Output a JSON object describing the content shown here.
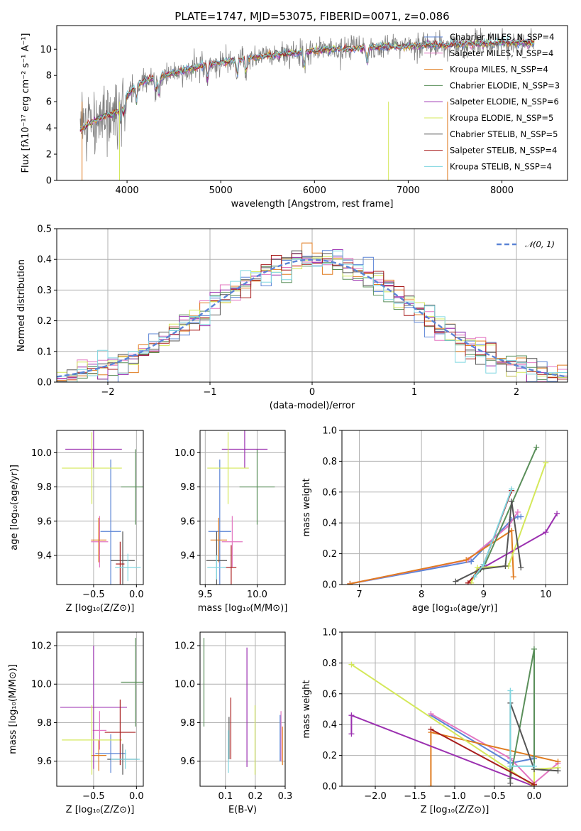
{
  "chart_data": [
    {
      "type": "line",
      "title": "PLATE=1747, MJD=53075, FIBERID=0071, z=0.086",
      "xlabel": "wavelength [Angstrom, rest frame]",
      "ylabel": "Flux [fλ10⁻¹⁷ erg cm⁻² s⁻¹ A⁻¹]",
      "xlim": [
        3250,
        8700
      ],
      "ylim": [
        0,
        11.8
      ],
      "xticks": [
        "4000",
        "5000",
        "6000",
        "7000",
        "8000"
      ],
      "yticks": [
        "0",
        "2",
        "4",
        "6",
        "8",
        "10"
      ],
      "legend": "upper-right",
      "grid": false,
      "data_color": "#808080",
      "continuum": {
        "x": [
          3500,
          3600,
          3700,
          3800,
          3900,
          4000,
          4100,
          4200,
          4400,
          4600,
          4800,
          5000,
          5200,
          5400,
          5600,
          5800,
          6000,
          6200,
          6400,
          6600,
          6800,
          7000,
          7200,
          7400,
          7600,
          7800,
          8000,
          8300
        ],
        "y": [
          3.9,
          4.3,
          4.7,
          5.0,
          5.2,
          6.5,
          7.2,
          7.6,
          8.0,
          8.4,
          8.7,
          9.0,
          9.2,
          9.4,
          9.6,
          9.7,
          9.9,
          10.0,
          10.0,
          10.1,
          10.2,
          10.2,
          10.3,
          10.3,
          10.4,
          10.4,
          10.5,
          10.5
        ]
      },
      "series": [
        {
          "name": "Chabrier MILES, N_SSP=4",
          "color": "#5b84d6"
        },
        {
          "name": "Salpeter MILES, N_SSP=4",
          "color": "#e377c2"
        },
        {
          "name": "Kroupa MILES, N_SSP=4",
          "color": "#e07b1f"
        },
        {
          "name": "Chabrier ELODIE, N_SSP=3",
          "color": "#5a8f5a"
        },
        {
          "name": "Salpeter ELODIE, N_SSP=6",
          "color": "#9b30b0"
        },
        {
          "name": "Kroupa ELODIE, N_SSP=5",
          "color": "#d4e85a"
        },
        {
          "name": "Chabrier STELIB, N_SSP=5",
          "color": "#555555"
        },
        {
          "name": "Salpeter STELIB, N_SSP=4",
          "color": "#a81c1c"
        },
        {
          "name": "Kroupa STELIB, N_SSP=4",
          "color": "#7fd6e0"
        }
      ]
    },
    {
      "type": "histogram",
      "xlabel": "(data-model)/error",
      "ylabel": "Normed distribution",
      "xlim": [
        -2.5,
        2.5
      ],
      "ylim": [
        0,
        0.5
      ],
      "xticks": [
        "−2",
        "−1",
        "0",
        "1",
        "2"
      ],
      "yticks": [
        "0.0",
        "0.1",
        "0.2",
        "0.3",
        "0.4",
        "0.5"
      ],
      "grid": true,
      "legend": "upper-right",
      "reference_curve": {
        "name": "𝒩(0, 1)",
        "mean": 0,
        "sigma": 1,
        "color": "#5b84d6"
      },
      "bin_width": 0.1,
      "bin_start": -2.5
    },
    {
      "type": "scatter",
      "xlabel": "Z [log₁₀(Z/Z⊙)]",
      "ylabel": "age  [log₁₀(age/yr)]",
      "xlim": [
        -0.93,
        0.08
      ],
      "ylim": [
        9.23,
        10.13
      ],
      "xticks": [
        "−0.5",
        "0.0"
      ],
      "yticks": [
        "9.4",
        "9.6",
        "9.8",
        "10.0"
      ],
      "points": [
        {
          "x": -0.3,
          "y": 9.54,
          "xerr": 0.12,
          "yerr": 0.42,
          "color": "#5b84d6"
        },
        {
          "x": -0.43,
          "y": 9.48,
          "xerr": 0.1,
          "yerr": 0.15,
          "color": "#e377c2"
        },
        {
          "x": -0.44,
          "y": 9.49,
          "xerr": 0.09,
          "yerr": 0.13,
          "color": "#e07b1f"
        },
        {
          "x": -0.01,
          "y": 9.8,
          "xerr": 0.17,
          "yerr": 0.22,
          "color": "#5a8f5a"
        },
        {
          "x": -0.5,
          "y": 10.02,
          "xerr": 0.33,
          "yerr": 0.11,
          "color": "#9b30b0"
        },
        {
          "x": -0.52,
          "y": 9.91,
          "xerr": 0.35,
          "yerr": 0.21,
          "color": "#d4e85a"
        },
        {
          "x": -0.16,
          "y": 9.37,
          "xerr": 0.14,
          "yerr": 0.17,
          "color": "#555555"
        },
        {
          "x": -0.19,
          "y": 9.35,
          "xerr": 0.05,
          "yerr": 0.13,
          "color": "#a81c1c"
        },
        {
          "x": -0.1,
          "y": 9.33,
          "xerr": 0.15,
          "yerr": 0.08,
          "color": "#7fd6e0"
        }
      ]
    },
    {
      "type": "scatter",
      "xlabel": "mass [log₁₀(M/M⊙)]",
      "ylabel": "",
      "xlim": [
        9.45,
        10.27
      ],
      "ylim": [
        9.23,
        10.13
      ],
      "xticks": [
        "9.5",
        "10.0"
      ],
      "yticks": [
        "9.4",
        "9.6",
        "9.8",
        "10.0"
      ],
      "points": [
        {
          "x": 9.64,
          "y": 9.54,
          "xerr": 0.11,
          "yerr": 0.42,
          "color": "#5b84d6"
        },
        {
          "x": 9.76,
          "y": 9.48,
          "xerr": 0.1,
          "yerr": 0.15,
          "color": "#e377c2"
        },
        {
          "x": 9.63,
          "y": 9.49,
          "xerr": 0.08,
          "yerr": 0.13,
          "color": "#e07b1f"
        },
        {
          "x": 10.0,
          "y": 9.8,
          "xerr": 0.17,
          "yerr": 0.22,
          "color": "#5a8f5a"
        },
        {
          "x": 9.88,
          "y": 10.02,
          "xerr": 0.22,
          "yerr": 0.11,
          "color": "#9b30b0"
        },
        {
          "x": 9.72,
          "y": 9.91,
          "xerr": 0.2,
          "yerr": 0.21,
          "color": "#d4e85a"
        },
        {
          "x": 9.61,
          "y": 9.37,
          "xerr": 0.1,
          "yerr": 0.17,
          "color": "#555555"
        },
        {
          "x": 9.75,
          "y": 9.33,
          "xerr": 0.05,
          "yerr": 0.13,
          "color": "#a81c1c"
        },
        {
          "x": 9.61,
          "y": 9.33,
          "xerr": 0.09,
          "yerr": 0.07,
          "color": "#7fd6e0"
        }
      ]
    },
    {
      "type": "line",
      "xlabel": "age  [log₁₀(age/yr)]",
      "ylabel": "mass weight",
      "xlim": [
        6.72,
        10.35
      ],
      "ylim": [
        0,
        1.0
      ],
      "xticks": [
        "7",
        "8",
        "9",
        "10"
      ],
      "yticks": [
        "0.0",
        "0.2",
        "0.4",
        "0.6",
        "0.8",
        "1.0"
      ],
      "grid": true,
      "series": [
        {
          "color": "#5b84d6",
          "x": [
            6.85,
            8.8,
            9.45,
            9.55,
            9.6
          ],
          "y": [
            0.005,
            0.15,
            0.42,
            0.44,
            0.44
          ]
        },
        {
          "color": "#e377c2",
          "x": [
            6.85,
            8.75,
            9.4,
            9.55
          ],
          "y": [
            0.005,
            0.16,
            0.38,
            0.47
          ]
        },
        {
          "color": "#e07b1f",
          "x": [
            6.85,
            8.72,
            9.45,
            9.48
          ],
          "y": [
            0.005,
            0.16,
            0.35,
            0.05
          ]
        },
        {
          "color": "#5a8f5a",
          "x": [
            8.85,
            9.0,
            9.85
          ],
          "y": [
            0.05,
            0.11,
            0.89
          ]
        },
        {
          "color": "#9b30b0",
          "x": [
            8.95,
            10.0,
            10.18
          ],
          "y": [
            0.1,
            0.34,
            0.46
          ]
        },
        {
          "color": "#d4e85a",
          "x": [
            8.8,
            8.9,
            9.4,
            10.0
          ],
          "y": [
            0.01,
            0.11,
            0.12,
            0.79
          ]
        },
        {
          "color": "#555555",
          "x": [
            8.55,
            8.95,
            9.35,
            9.45,
            9.6
          ],
          "y": [
            0.02,
            0.1,
            0.12,
            0.54,
            0.11
          ]
        },
        {
          "color": "#a81c1c",
          "x": [
            8.75,
            9.0,
            9.45
          ],
          "y": [
            0.01,
            0.13,
            0.61
          ]
        },
        {
          "color": "#7fd6e0",
          "x": [
            8.85,
            9.0,
            9.45
          ],
          "y": [
            0.05,
            0.13,
            0.62
          ]
        }
      ]
    },
    {
      "type": "scatter",
      "xlabel": "Z [log₁₀(Z/Z⊙)]",
      "ylabel": "mass [log₁₀(M/M⊙)]",
      "xlim": [
        -0.93,
        0.08
      ],
      "ylim": [
        9.47,
        10.27
      ],
      "xticks": [
        "−0.5",
        "0.0"
      ],
      "yticks": [
        "9.6",
        "9.8",
        "10.0",
        "10.2"
      ],
      "points": [
        {
          "x": -0.3,
          "y": 9.64,
          "xerr": 0.18,
          "yerr": 0.1,
          "color": "#5b84d6"
        },
        {
          "x": -0.43,
          "y": 9.76,
          "xerr": 0.08,
          "yerr": 0.1,
          "color": "#e377c2"
        },
        {
          "x": -0.44,
          "y": 9.63,
          "xerr": 0.09,
          "yerr": 0.08,
          "color": "#e07b1f"
        },
        {
          "x": -0.01,
          "y": 10.01,
          "xerr": 0.17,
          "yerr": 0.23,
          "color": "#5a8f5a"
        },
        {
          "x": -0.5,
          "y": 9.88,
          "xerr": 0.39,
          "yerr": 0.32,
          "color": "#9b30b0"
        },
        {
          "x": -0.52,
          "y": 9.71,
          "xerr": 0.35,
          "yerr": 0.18,
          "color": "#d4e85a"
        },
        {
          "x": -0.16,
          "y": 9.61,
          "xerr": 0.18,
          "yerr": 0.08,
          "color": "#555555"
        },
        {
          "x": -0.19,
          "y": 9.75,
          "xerr": 0.18,
          "yerr": 0.17,
          "color": "#a81c1c"
        },
        {
          "x": -0.13,
          "y": 9.61,
          "xerr": 0.17,
          "yerr": 0.05,
          "color": "#7fd6e0"
        }
      ]
    },
    {
      "type": "scatter",
      "xlabel": "E(B-V)",
      "ylabel": "",
      "xlim": [
        0.015,
        0.3
      ],
      "ylim": [
        9.47,
        10.27
      ],
      "xticks": [
        "0.1",
        "0.2",
        "0.3"
      ],
      "yticks": [
        "9.6",
        "9.8",
        "10.0",
        "10.2"
      ],
      "points": [
        {
          "x": 0.283,
          "y": 9.72,
          "yerr": 0.12,
          "color": "#5b84d6"
        },
        {
          "x": 0.286,
          "y": 9.73,
          "yerr": 0.13,
          "color": "#e377c2"
        },
        {
          "x": 0.291,
          "y": 9.68,
          "yerr": 0.1,
          "color": "#e07b1f"
        },
        {
          "x": 0.028,
          "y": 10.01,
          "yerr": 0.23,
          "color": "#5a8f5a"
        },
        {
          "x": 0.172,
          "y": 9.88,
          "yerr": 0.31,
          "color": "#9b30b0"
        },
        {
          "x": 0.199,
          "y": 9.71,
          "yerr": 0.18,
          "color": "#d4e85a"
        },
        {
          "x": 0.112,
          "y": 9.72,
          "yerr": 0.11,
          "color": "#555555"
        },
        {
          "x": 0.118,
          "y": 9.77,
          "yerr": 0.16,
          "color": "#a81c1c"
        },
        {
          "x": 0.11,
          "y": 9.65,
          "yerr": 0.11,
          "color": "#7fd6e0"
        }
      ]
    },
    {
      "type": "line",
      "xlabel": "Z [log₁₀(Z/Z⊙)]",
      "ylabel": "mass weight",
      "xlim": [
        -2.42,
        0.42
      ],
      "ylim": [
        0,
        1.0
      ],
      "xticks": [
        "−2.0",
        "−1.5",
        "−1.0",
        "−0.5",
        "0.0"
      ],
      "yticks": [
        "0.0",
        "0.2",
        "0.4",
        "0.6",
        "0.8",
        "1.0"
      ],
      "grid": true,
      "series": [
        {
          "color": "#5b84d6",
          "x": [
            -1.3,
            -0.3,
            0.0,
            0.0
          ],
          "y": [
            0.46,
            0.15,
            0.18,
            0.19
          ]
        },
        {
          "color": "#e377c2",
          "x": [
            -1.3,
            -0.3,
            0.0,
            0.3
          ],
          "y": [
            0.47,
            0.18,
            0.02,
            0.15
          ]
        },
        {
          "color": "#e07b1f",
          "x": [
            -1.3,
            -1.3,
            0.3
          ],
          "y": [
            0.0,
            0.35,
            0.16
          ]
        },
        {
          "color": "#5a8f5a",
          "x": [
            -0.3,
            0.0,
            0.0
          ],
          "y": [
            0.05,
            0.89,
            0.11
          ]
        },
        {
          "color": "#9b30b0",
          "x": [
            -2.3,
            -2.3,
            0.0
          ],
          "y": [
            0.34,
            0.46,
            0.0
          ]
        },
        {
          "color": "#d4e85a",
          "x": [
            -2.3,
            0.0,
            0.0,
            0.3
          ],
          "y": [
            0.79,
            0.0,
            0.11,
            0.12
          ]
        },
        {
          "color": "#555555",
          "x": [
            -0.3,
            -0.3,
            0.0,
            0.3
          ],
          "y": [
            0.02,
            0.54,
            0.11,
            0.1
          ]
        },
        {
          "color": "#a81c1c",
          "x": [
            -1.3,
            0.0
          ],
          "y": [
            0.37,
            0.01
          ]
        },
        {
          "color": "#7fd6e0",
          "x": [
            -0.3,
            -0.3,
            0.0
          ],
          "y": [
            0.62,
            0.13,
            0.13
          ]
        }
      ]
    }
  ]
}
